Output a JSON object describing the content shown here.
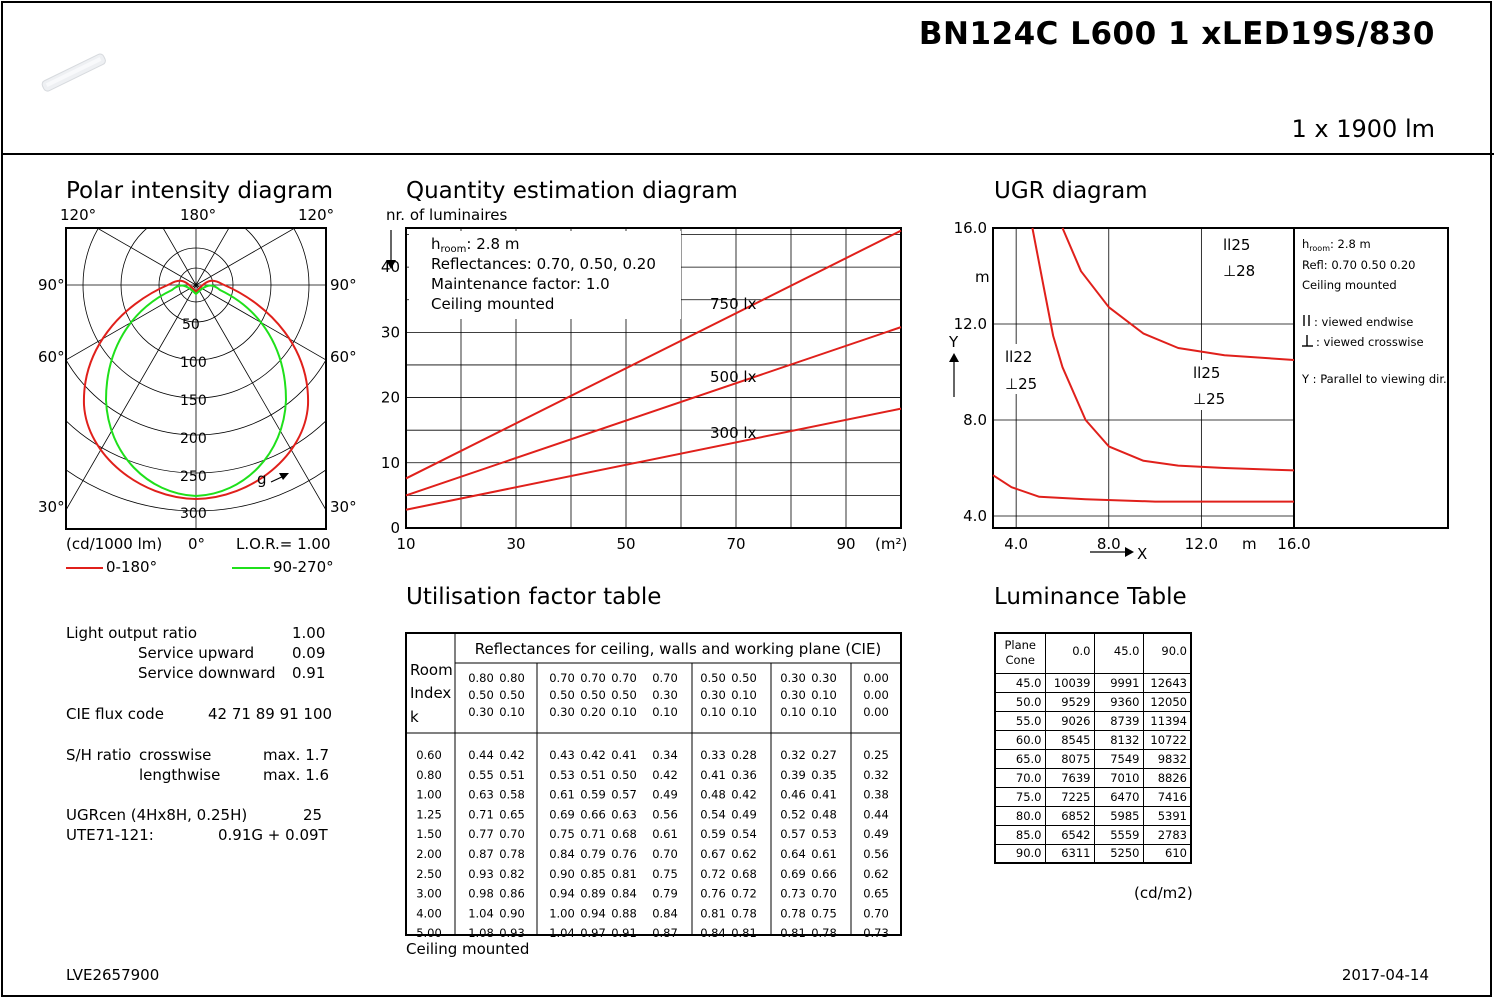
{
  "header": {
    "product_name": "BN124C L600 1 xLED19S/830",
    "flux": "1 x 1900 lm"
  },
  "polar": {
    "title": "Polar intensity diagram",
    "angle_labels": {
      "top_left": "120°",
      "top_center": "180°",
      "top_right": "120°",
      "left_90": "90°",
      "right_90": "90°",
      "left_60": "60°",
      "right_60": "60°",
      "left_30": "30°",
      "right_30": "30°",
      "bottom_0": "0°"
    },
    "ring_labels": [
      "50",
      "100",
      "150",
      "200",
      "250",
      "300"
    ],
    "unit": "(cd/1000 lm)",
    "lor": "L.O.R.= 1.00",
    "gamma_label": "g",
    "legend": [
      {
        "label": "0-180°",
        "color": "#e0201b"
      },
      {
        "label": "90-270°",
        "color": "#1fe01b"
      }
    ]
  },
  "specs": {
    "lor_label": "Light output ratio",
    "lor_value": "1.00",
    "up_label": "Service upward",
    "up_value": "0.09",
    "down_label": "Service downward",
    "down_value": "0.91",
    "cie_label": "CIE flux code",
    "cie_value": "42 71 89 91 100",
    "sh_label": "S/H ratio",
    "sh_cross_label": "crosswise",
    "sh_cross_value": "max. 1.7",
    "sh_length_label": "lengthwise",
    "sh_length_value": "max. 1.6",
    "ugr_label": "UGRcen (4Hx8H, 0.25H)",
    "ugr_value": "25",
    "ute_label": "UTE71-121:",
    "ute_value": "0.91G + 0.09T"
  },
  "quantity": {
    "title": "Quantity estimation diagram",
    "ylabel": "nr. of luminaires",
    "xunit": "(m²)",
    "info": {
      "h_room_sym": "h",
      "h_room_sub": "room",
      "h_room_value": ": 2.8 m",
      "reflectances": "Reflectances: 0.70, 0.50, 0.20",
      "maintenance": "Maintenance factor: 1.0",
      "mounting": "Ceiling mounted"
    },
    "line_labels": [
      "750 lx",
      "500 lx",
      "300 lx"
    ],
    "y_ticks": [
      "0",
      "10",
      "20",
      "30",
      "40"
    ],
    "x_ticks": [
      "10",
      "30",
      "50",
      "70",
      "90"
    ]
  },
  "chart_data": [
    {
      "type": "line",
      "title": "Quantity estimation diagram",
      "xlabel": "(m²)",
      "ylabel": "nr. of luminaires",
      "xlim": [
        10,
        100
      ],
      "ylim": [
        0,
        46
      ],
      "series": [
        {
          "name": "750 lx",
          "x": [
            10,
            100
          ],
          "y": [
            7.6,
            45.6
          ]
        },
        {
          "name": "500 lx",
          "x": [
            10,
            100
          ],
          "y": [
            5.0,
            30.8
          ]
        },
        {
          "name": "300 lx",
          "x": [
            10,
            100
          ],
          "y": [
            2.8,
            18.3
          ]
        }
      ]
    },
    {
      "type": "line",
      "title": "UGR diagram",
      "xlabel": "X",
      "ylabel": "Y",
      "xlim": [
        3,
        16
      ],
      "ylim": [
        3.5,
        16
      ],
      "series": [
        {
          "x": [
            4.7,
            4.9,
            5.2,
            5.6,
            6.0,
            7.0,
            8.0,
            9.5,
            11,
            13,
            16
          ],
          "y": [
            16,
            15,
            13.5,
            11.5,
            10.2,
            8.0,
            6.9,
            6.3,
            6.1,
            6.0,
            5.9
          ]
        },
        {
          "x": [
            6.0,
            6.8,
            8.0,
            9.5,
            11,
            13,
            16
          ],
          "y": [
            16,
            14.2,
            12.7,
            11.6,
            11.0,
            10.7,
            10.5
          ]
        },
        {
          "x": [
            3.0,
            3.8,
            5.0,
            7.0,
            10,
            13,
            16
          ],
          "y": [
            5.7,
            5.2,
            4.8,
            4.7,
            4.6,
            4.6,
            4.6
          ]
        }
      ]
    }
  ],
  "ugr": {
    "title": "UGR diagram",
    "y_ticks": [
      "4.0",
      "8.0",
      "12.0",
      "16.0"
    ],
    "x_ticks": [
      "4.0",
      "8.0",
      "12.0",
      "16.0"
    ],
    "y_unit": "m",
    "x_unit": "m",
    "x_axis": "X",
    "y_axis": "Y",
    "annotations": [
      {
        "line1": "ll25",
        "line2": "⊥28"
      },
      {
        "line1": "ll22",
        "line2": "⊥25"
      },
      {
        "line1": "ll25",
        "line2": "⊥25"
      }
    ],
    "legend": {
      "h_room_sym": "h",
      "h_room_sub": "room",
      "h_room_value": ": 2.8 m",
      "refl": "Refl: 0.70 0.50 0.20",
      "mount": "Ceiling mounted",
      "endwise": ": viewed endwise",
      "crosswise": ": viewed crosswise",
      "parallel": "Y   : Parallel to viewing dir."
    }
  },
  "utilisation": {
    "title": "Utilisation factor table",
    "header": "Reflectances for ceiling, walls and working plane (CIE)",
    "room_index": [
      "Room",
      "Index",
      "k"
    ],
    "ceiling": [
      "0.80",
      "0.80",
      "0.70",
      "0.70",
      "0.70",
      "0.70",
      "0.50",
      "0.50",
      "0.30",
      "0.30",
      "0.00"
    ],
    "walls": [
      "0.50",
      "0.50",
      "0.50",
      "0.50",
      "0.50",
      "0.30",
      "0.30",
      "0.10",
      "0.30",
      "0.10",
      "0.00"
    ],
    "plane": [
      "0.30",
      "0.10",
      "0.30",
      "0.20",
      "0.10",
      "0.10",
      "0.10",
      "0.10",
      "0.10",
      "0.10",
      "0.00"
    ],
    "rows": [
      {
        "k": "0.60",
        "v": [
          "0.44",
          "0.42",
          "0.43",
          "0.42",
          "0.41",
          "0.34",
          "0.33",
          "0.28",
          "0.32",
          "0.27",
          "0.25"
        ]
      },
      {
        "k": "0.80",
        "v": [
          "0.55",
          "0.51",
          "0.53",
          "0.51",
          "0.50",
          "0.42",
          "0.41",
          "0.36",
          "0.39",
          "0.35",
          "0.32"
        ]
      },
      {
        "k": "1.00",
        "v": [
          "0.63",
          "0.58",
          "0.61",
          "0.59",
          "0.57",
          "0.49",
          "0.48",
          "0.42",
          "0.46",
          "0.41",
          "0.38"
        ]
      },
      {
        "k": "1.25",
        "v": [
          "0.71",
          "0.65",
          "0.69",
          "0.66",
          "0.63",
          "0.56",
          "0.54",
          "0.49",
          "0.52",
          "0.48",
          "0.44"
        ]
      },
      {
        "k": "1.50",
        "v": [
          "0.77",
          "0.70",
          "0.75",
          "0.71",
          "0.68",
          "0.61",
          "0.59",
          "0.54",
          "0.57",
          "0.53",
          "0.49"
        ]
      },
      {
        "k": "2.00",
        "v": [
          "0.87",
          "0.78",
          "0.84",
          "0.79",
          "0.76",
          "0.70",
          "0.67",
          "0.62",
          "0.64",
          "0.61",
          "0.56"
        ]
      },
      {
        "k": "2.50",
        "v": [
          "0.93",
          "0.82",
          "0.90",
          "0.85",
          "0.81",
          "0.75",
          "0.72",
          "0.68",
          "0.69",
          "0.66",
          "0.62"
        ]
      },
      {
        "k": "3.00",
        "v": [
          "0.98",
          "0.86",
          "0.94",
          "0.89",
          "0.84",
          "0.79",
          "0.76",
          "0.72",
          "0.73",
          "0.70",
          "0.65"
        ]
      },
      {
        "k": "4.00",
        "v": [
          "1.04",
          "0.90",
          "1.00",
          "0.94",
          "0.88",
          "0.84",
          "0.81",
          "0.78",
          "0.78",
          "0.75",
          "0.70"
        ]
      },
      {
        "k": "5.00",
        "v": [
          "1.08",
          "0.93",
          "1.04",
          "0.97",
          "0.91",
          "0.87",
          "0.84",
          "0.81",
          "0.81",
          "0.78",
          "0.73"
        ]
      }
    ],
    "footer": "Ceiling mounted"
  },
  "luminance": {
    "title": "Luminance Table",
    "corner_top": "Plane",
    "corner_bottom": "Cone",
    "columns": [
      "0.0",
      "45.0",
      "90.0"
    ],
    "rows": [
      {
        "cone": "45.0",
        "v": [
          "10039",
          "9991",
          "12643"
        ]
      },
      {
        "cone": "50.0",
        "v": [
          "9529",
          "9360",
          "12050"
        ]
      },
      {
        "cone": "55.0",
        "v": [
          "9026",
          "8739",
          "11394"
        ]
      },
      {
        "cone": "60.0",
        "v": [
          "8545",
          "8132",
          "10722"
        ]
      },
      {
        "cone": "65.0",
        "v": [
          "8075",
          "7549",
          "9832"
        ]
      },
      {
        "cone": "70.0",
        "v": [
          "7639",
          "7010",
          "8826"
        ]
      },
      {
        "cone": "75.0",
        "v": [
          "7225",
          "6470",
          "7416"
        ]
      },
      {
        "cone": "80.0",
        "v": [
          "6852",
          "5985",
          "5391"
        ]
      },
      {
        "cone": "85.0",
        "v": [
          "6542",
          "5559",
          "2783"
        ]
      },
      {
        "cone": "90.0",
        "v": [
          "6311",
          "5250",
          "610"
        ]
      }
    ],
    "unit": "(cd/m2)"
  },
  "footer": {
    "doc_id": "LVE2657900",
    "date": "2017-04-14"
  }
}
